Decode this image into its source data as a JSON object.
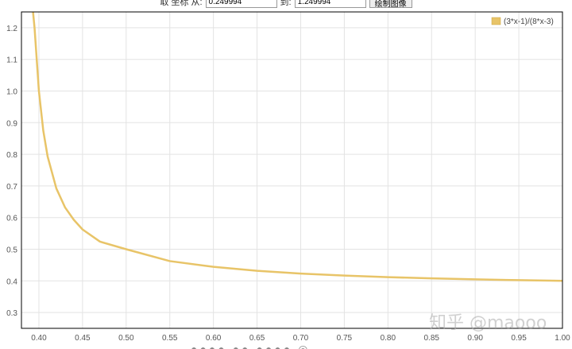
{
  "toolbar": {
    "range_label": "取 坐标 从:",
    "from_value": "0.249994",
    "to_label": "到:",
    "to_value": "1.249994",
    "plot_button": "绘制图像"
  },
  "watermark": "知乎 @maooo",
  "bottom_strip": "●●●● ●● ●●●● ◎",
  "chart_data": {
    "type": "line",
    "title": "",
    "xlabel": "",
    "ylabel": "",
    "xlim": [
      0.38,
      1.0
    ],
    "ylim": [
      0.25,
      1.25
    ],
    "x_ticks": [
      "0.40",
      "0.45",
      "0.50",
      "0.55",
      "0.60",
      "0.65",
      "0.70",
      "0.75",
      "0.80",
      "0.85",
      "0.90",
      "0.95",
      "1.00"
    ],
    "y_ticks": [
      "0.3",
      "0.4",
      "0.5",
      "0.6",
      "0.7",
      "0.8",
      "0.9",
      "1.0",
      "1.1",
      "1.2"
    ],
    "grid": true,
    "legend": "top-right",
    "series": [
      {
        "name": "(3*x-1)/(8*x-3)",
        "color": "#e8c468",
        "x": [
          0.393,
          0.395,
          0.4,
          0.405,
          0.41,
          0.42,
          0.43,
          0.44,
          0.45,
          0.47,
          0.5,
          0.55,
          0.6,
          0.65,
          0.7,
          0.75,
          0.8,
          0.85,
          0.9,
          0.95,
          1.0
        ],
        "y": [
          1.257,
          1.2,
          1.0,
          0.875,
          0.793,
          0.692,
          0.632,
          0.593,
          0.5625,
          0.524,
          0.5,
          0.4625,
          0.4444,
          0.4318,
          0.4231,
          0.4167,
          0.4118,
          0.4079,
          0.4048,
          0.4022,
          0.4
        ]
      }
    ]
  }
}
